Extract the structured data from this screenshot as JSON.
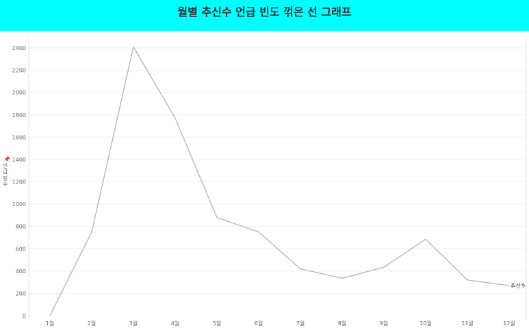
{
  "header": {
    "title": "월별 추신수 언급 빈도 꺾은 선 그래프"
  },
  "y_axis": {
    "title": "언급 횟수"
  },
  "chart_data": {
    "type": "line",
    "title": "월별 추신수 언급 빈도 꺾은 선 그래프",
    "xlabel": "",
    "ylabel": "언급 횟수",
    "categories": [
      "1월",
      "2월",
      "3월",
      "4월",
      "5월",
      "6월",
      "7월",
      "8월",
      "9월",
      "10월",
      "11월",
      "12월"
    ],
    "series": [
      {
        "name": "추신수",
        "values": [
          0,
          750,
          2410,
          1770,
          880,
          750,
          420,
          335,
          435,
          685,
          320,
          270
        ]
      }
    ],
    "ylim": [
      0,
      2400
    ],
    "yticks": [
      0,
      200,
      400,
      600,
      800,
      1000,
      1200,
      1400,
      1600,
      1800,
      2000,
      2200,
      2400
    ],
    "grid": true,
    "line_color": "#b3b3b3"
  }
}
